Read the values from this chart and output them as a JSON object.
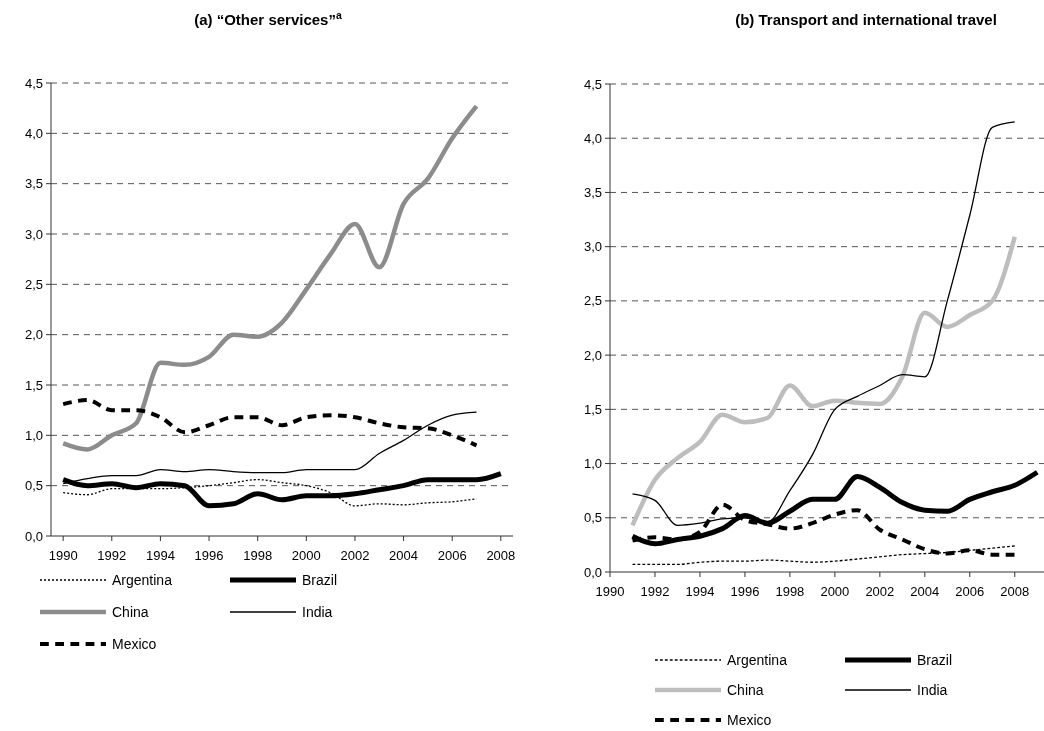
{
  "chart_data": [
    {
      "type": "line",
      "title": "(a) “Other services”$^{a}$",
      "xlim": [
        1989.5,
        2008.5
      ],
      "xticks": [
        1990,
        1992,
        1994,
        1996,
        1998,
        2000,
        2002,
        2004,
        2006,
        2008
      ],
      "ylim": [
        0,
        4.5
      ],
      "yticks": [
        {
          "value": 0,
          "label": "0,0"
        },
        {
          "value": 0.5,
          "label": "0,5"
        },
        {
          "value": 1,
          "label": "1,0"
        },
        {
          "value": 1.5,
          "label": "1,5"
        },
        {
          "value": 2,
          "label": "2,0"
        },
        {
          "value": 2.5,
          "label": "2,5"
        },
        {
          "value": 3,
          "label": "3,0"
        },
        {
          "value": 3.5,
          "label": "3,5"
        },
        {
          "value": 4,
          "label": "4,0"
        },
        {
          "value": 4.5,
          "label": "4,5"
        }
      ],
      "grid": "y",
      "legend": "bottom",
      "x": [
        1990,
        1991,
        1992,
        1993,
        1994,
        1995,
        1996,
        1997,
        1998,
        1999,
        2000,
        2001,
        2002,
        2003,
        2004,
        2005,
        2006,
        2007,
        2008
      ],
      "series": [
        {
          "name": "Argentina",
          "color": "#000000",
          "line_style": "dotted",
          "values": [
            0.43,
            0.41,
            0.47,
            0.47,
            0.47,
            0.48,
            0.5,
            0.53,
            0.56,
            0.53,
            0.5,
            0.43,
            0.3,
            0.32,
            0.31,
            0.33,
            0.34,
            0.37,
            null
          ]
        },
        {
          "name": "Brazil",
          "color": "#000000",
          "line_style": "solid",
          "values": [
            0.56,
            0.5,
            0.52,
            0.48,
            0.52,
            0.5,
            0.3,
            0.32,
            0.42,
            0.36,
            0.4,
            0.4,
            0.42,
            0.46,
            0.5,
            0.56,
            0.56,
            0.56,
            0.62
          ]
        },
        {
          "name": "China",
          "color": "#8c8c8c",
          "line_style": "solid",
          "values": [
            0.92,
            0.86,
            1.0,
            1.12,
            1.72,
            1.7,
            1.78,
            2.0,
            1.98,
            2.12,
            2.45,
            2.8,
            3.1,
            2.67,
            3.3,
            3.55,
            3.95,
            4.27,
            null
          ]
        },
        {
          "name": "India",
          "color": "#000000",
          "line_style": "solid",
          "values": [
            0.52,
            0.57,
            0.6,
            0.6,
            0.66,
            0.64,
            0.66,
            0.64,
            0.63,
            0.63,
            0.66,
            0.66,
            0.66,
            0.82,
            0.95,
            1.1,
            1.2,
            1.23,
            null
          ]
        },
        {
          "name": "Mexico",
          "color": "#000000",
          "line_style": "dashed",
          "values": [
            1.31,
            1.35,
            1.25,
            1.25,
            1.18,
            1.03,
            1.1,
            1.18,
            1.18,
            1.1,
            1.18,
            1.2,
            1.18,
            1.12,
            1.08,
            1.07,
            1.0,
            0.9,
            null
          ]
        }
      ]
    },
    {
      "type": "line",
      "title": "(b) Transport and international travel",
      "xlim": [
        1990,
        2009.3
      ],
      "xticks": [
        1990,
        1992,
        1994,
        1996,
        1998,
        2000,
        2002,
        2004,
        2006,
        2008
      ],
      "ylim": [
        0,
        4.5
      ],
      "yticks": [
        {
          "value": 0,
          "label": "0,0"
        },
        {
          "value": 0.5,
          "label": "0,5"
        },
        {
          "value": 1,
          "label": "1,0"
        },
        {
          "value": 1.5,
          "label": "1,5"
        },
        {
          "value": 2,
          "label": "2,0"
        },
        {
          "value": 2.5,
          "label": "2,5"
        },
        {
          "value": 3,
          "label": "3,0"
        },
        {
          "value": 3.5,
          "label": "3,5"
        },
        {
          "value": 4,
          "label": "4,0"
        },
        {
          "value": 4.5,
          "label": "4,5"
        }
      ],
      "grid": "y",
      "legend": "bottom",
      "x": [
        1991,
        1992,
        1993,
        1994,
        1995,
        1996,
        1997,
        1998,
        1999,
        2000,
        2001,
        2002,
        2003,
        2004,
        2005,
        2006,
        2007,
        2008,
        2009
      ],
      "series": [
        {
          "name": "Argentina",
          "color": "#000000",
          "line_style": "dashed",
          "values": [
            0.07,
            0.07,
            0.07,
            0.09,
            0.1,
            0.1,
            0.11,
            0.1,
            0.09,
            0.1,
            0.12,
            0.14,
            0.16,
            0.17,
            0.18,
            0.2,
            0.22,
            0.24,
            null
          ]
        },
        {
          "name": "Brazil",
          "color": "#000000",
          "line_style": "solid",
          "values": [
            0.33,
            0.26,
            0.3,
            0.33,
            0.4,
            0.52,
            0.45,
            0.56,
            0.67,
            0.67,
            0.88,
            0.78,
            0.64,
            0.57,
            0.56,
            0.67,
            0.74,
            0.8,
            0.92
          ]
        },
        {
          "name": "China",
          "color": "#bdbdbd",
          "line_style": "solid",
          "values": [
            0.43,
            0.85,
            1.05,
            1.2,
            1.45,
            1.38,
            1.42,
            1.72,
            1.53,
            1.58,
            1.56,
            1.55,
            1.8,
            2.39,
            2.26,
            2.37,
            2.5,
            3.09,
            null
          ]
        },
        {
          "name": "India",
          "color": "#000000",
          "line_style": "solid",
          "values": [
            0.72,
            0.66,
            0.43,
            0.45,
            0.49,
            0.5,
            0.46,
            0.75,
            1.08,
            1.5,
            1.62,
            1.72,
            1.82,
            1.8,
            2.5,
            3.29,
            4.1,
            4.15,
            null
          ]
        },
        {
          "name": "Mexico",
          "color": "#000000",
          "line_style": "dashed",
          "values": [
            0.29,
            0.32,
            0.3,
            0.37,
            0.62,
            0.48,
            0.44,
            0.4,
            0.45,
            0.53,
            0.57,
            0.39,
            0.3,
            0.21,
            0.17,
            0.2,
            0.16,
            0.16,
            null
          ]
        }
      ]
    }
  ]
}
